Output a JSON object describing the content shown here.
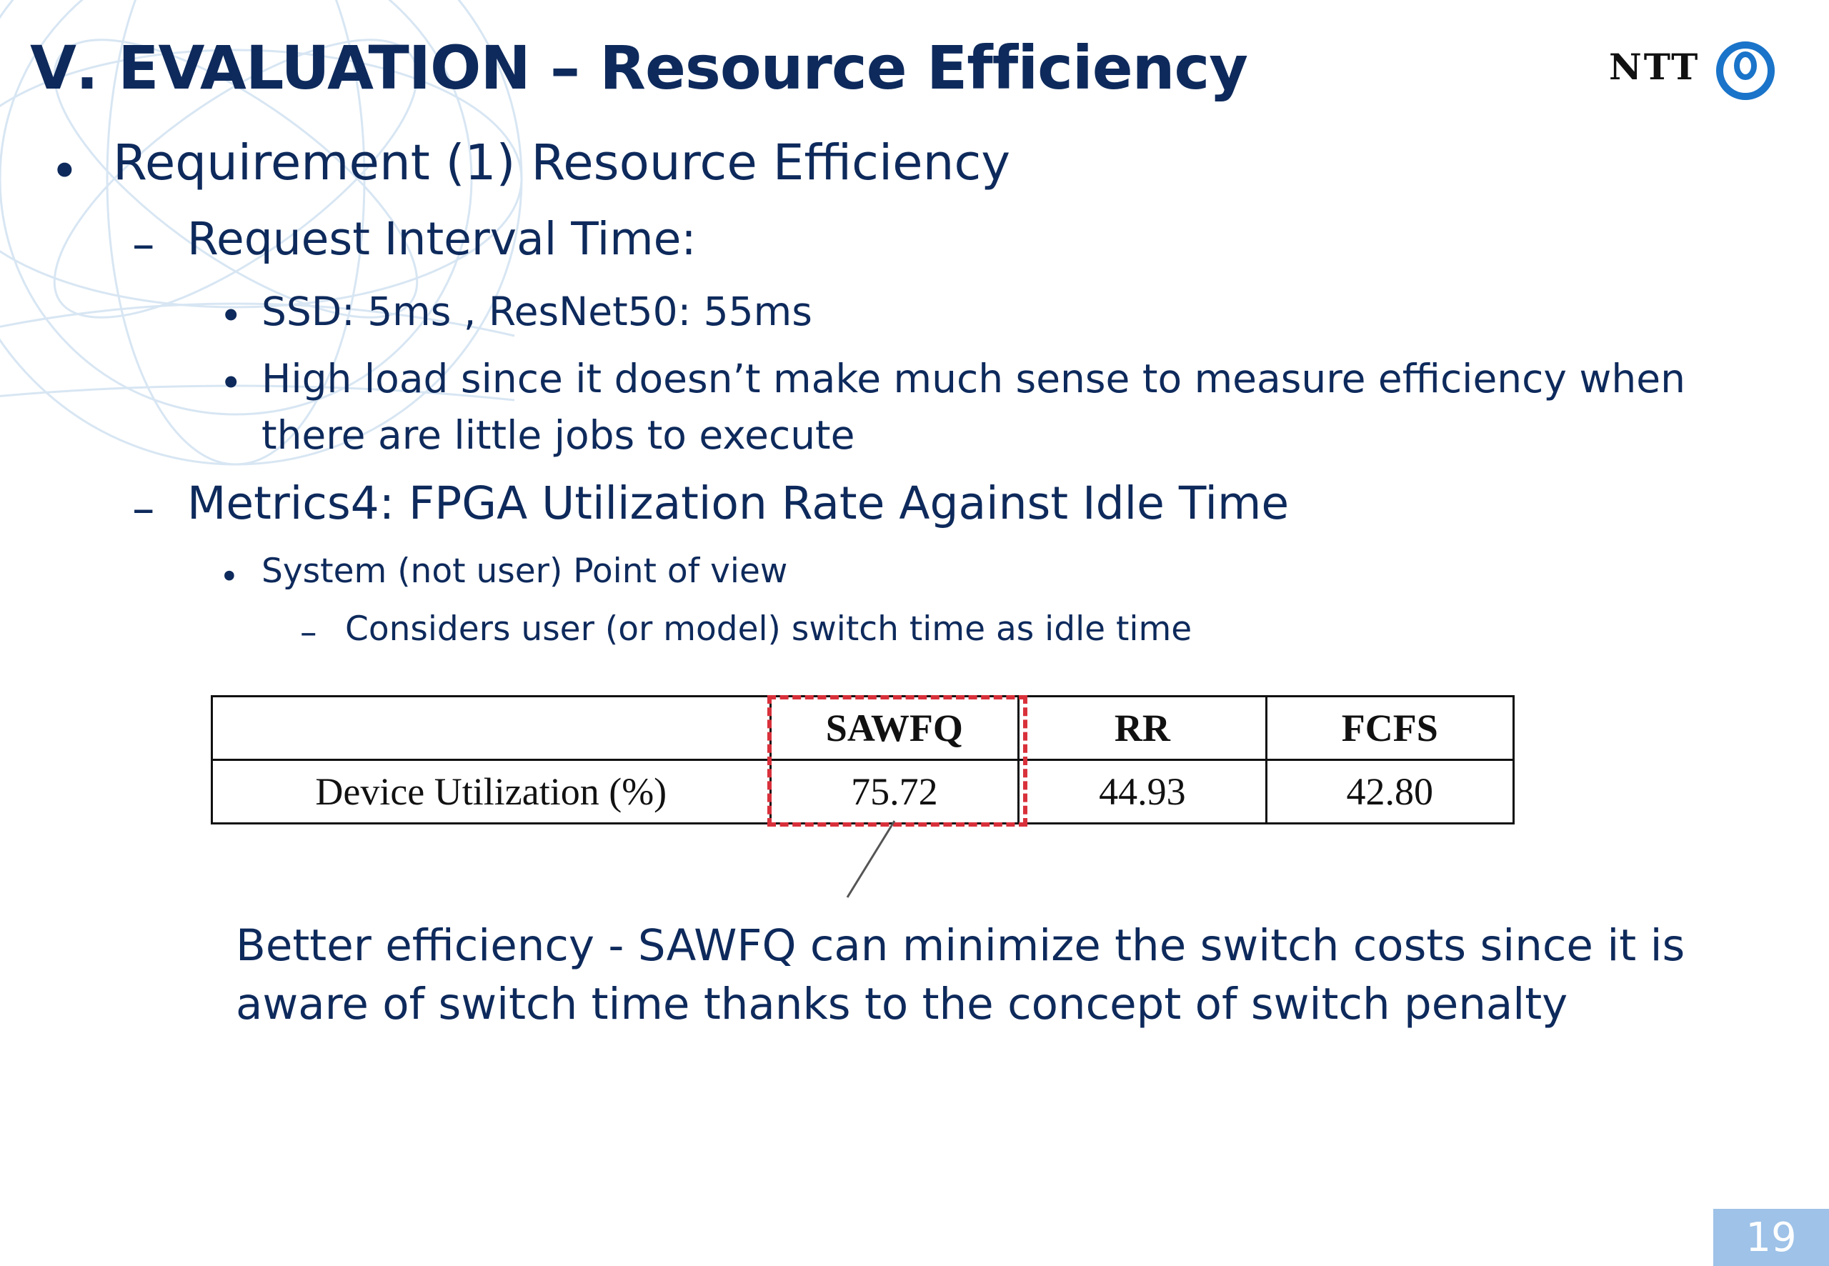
{
  "slide": {
    "title": "Ⅴ. EVALUATION – Resource Efficiency",
    "logo_text": "NTT",
    "page_number": "19"
  },
  "bullets": {
    "requirement": "Requirement (1) Resource Efficiency",
    "interval_heading": "Request Interval Time:",
    "interval_values": "SSD: 5ms ,  ResNet50: 55ms",
    "high_load_line1": "High load since it doesn’t make much sense to measure efficiency when",
    "high_load_line2": "there are little jobs to execute",
    "metrics_heading": "Metrics4: FPGA Utilization Rate Against Idle Time",
    "system_view": "System (not user) Point of view",
    "switch_idle": "Considers user (or model) switch time as idle time"
  },
  "table": {
    "headers": [
      "",
      "SAWFQ",
      "RR",
      "FCFS"
    ],
    "row_label": "Device Utilization (%)",
    "values": [
      "75.72",
      "44.93",
      "42.80"
    ]
  },
  "callout": {
    "line1": "Better efficiency - SAWFQ can minimize the switch costs since it is",
    "line2": "aware of switch time thanks to the concept of switch penalty"
  },
  "colors": {
    "title": "#0e2a5c",
    "text": "#0e2a5c",
    "highlight": "#d9313b",
    "logo_accent": "#1a74c9",
    "page_badge": "#9ec2e8"
  }
}
